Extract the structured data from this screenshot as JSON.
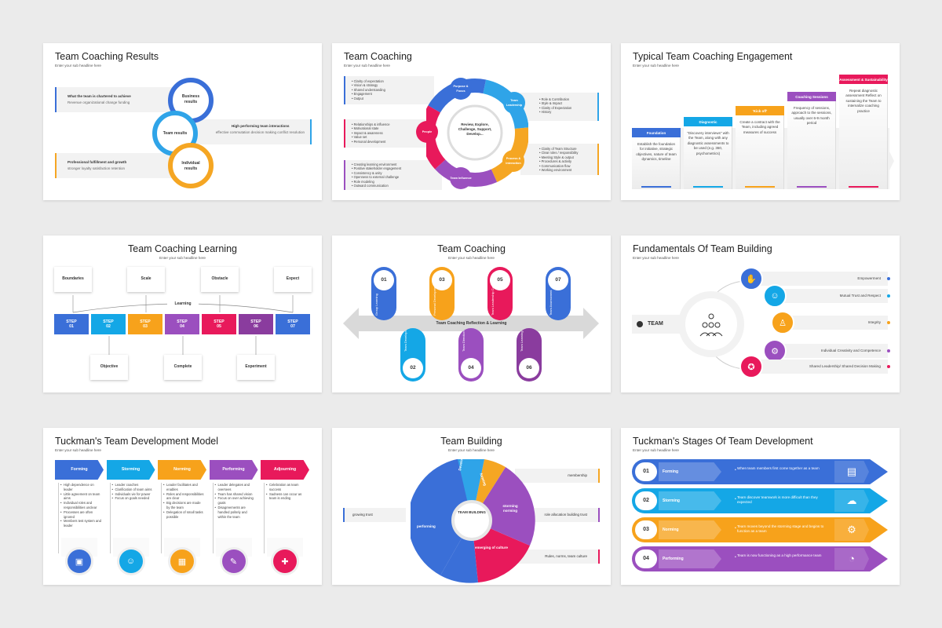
{
  "subhead": "Enter your sub headline here",
  "slide1": {
    "title": "Team Coaching Results",
    "left_top": {
      "head": "What the team is chartered to achieve",
      "sub": "Revenue organizational change funding"
    },
    "right_mid": {
      "head": "High performing team interactions",
      "sub": "effective commutation decision making conflict resolution"
    },
    "left_bot": {
      "head": "Professional fulfillment and growth",
      "sub": "stronger loyalty satisfaction retention"
    },
    "ring1": "Business results",
    "ring2": "Team results",
    "ring3": "Individual results"
  },
  "slide2": {
    "title": "Team Coaching",
    "center": "Review, Explore, Challenge, Support, Develop...",
    "nodes": [
      "Purpose & Focus",
      "Team Leadership",
      "Process & Interaction",
      "Team Influence",
      "People"
    ],
    "list_tl": [
      "Clarity of expectation",
      "Vision & strategy",
      "Shared understanding",
      "Engagement",
      "Output"
    ],
    "list_ml": [
      "Relationships & influence",
      "Motivational state",
      "Impact & awareness",
      "Value set",
      "Personal development"
    ],
    "list_bl": [
      "Creating learning environment",
      "Positive stakeholder engagement",
      "Consistency & unity",
      "Openness to external challenge",
      "Role modeling",
      "Outward communication"
    ],
    "list_tr": [
      "Role & Contribution",
      "Style & Impact",
      "Clarity of Expectation",
      "History"
    ],
    "list_br": [
      "Clarity of Team Structure",
      "Clear roles / responsibility",
      "Meeting Style & output",
      "Procedures & activity",
      "Communication flow",
      "Working environment"
    ]
  },
  "slide3": {
    "title": "Typical Team Coaching Engagement",
    "steps": [
      {
        "label": "Foundation",
        "text": "Establish the foundation for initiative, strategic objectives, nature of team dynamics, timeline"
      },
      {
        "label": "Diagnostic",
        "text": "\"Discovery interviews\" with the Team, along with any diagnostic assessments to be used (e.g. 360, psychometrics)"
      },
      {
        "label": "'Kick off'",
        "text": "Create a contract with the Team, including agreed measures of success"
      },
      {
        "label": "Coaching Sessions",
        "text": "Frequency of sessions, approach to the sessions, usually over 6-9 month period"
      },
      {
        "label": "Assessment & Sustainability",
        "text": "Repeat diagnostic assessment Reflect on sustaining the Team to internalize coaching practice"
      }
    ]
  },
  "slide4": {
    "title": "Team Coaching Learning",
    "top": [
      "Boundaries",
      "Scale",
      "Obstacle",
      "Expect"
    ],
    "bottom": [
      "Objective",
      "Complete",
      "Experiment"
    ],
    "learning": "Learning",
    "steps": [
      {
        "label": "STEP",
        "num": "01"
      },
      {
        "label": "STEP",
        "num": "02"
      },
      {
        "label": "STEP",
        "num": "03"
      },
      {
        "label": "STEP",
        "num": "04"
      },
      {
        "label": "STEP",
        "num": "05"
      },
      {
        "label": "STEP",
        "num": "06"
      },
      {
        "label": "STEP",
        "num": "07"
      }
    ]
  },
  "slide5": {
    "title": "Team Coaching",
    "arrow_label": "Team Coaching Reflection & Learning",
    "pills": [
      {
        "num": "01",
        "text": "Group Learning"
      },
      {
        "num": "02",
        "text": "Team Development"
      },
      {
        "num": "03",
        "text": "Personal Development"
      },
      {
        "num": "04",
        "text": "Team Direction"
      },
      {
        "num": "05",
        "text": "Team Leadership Coach"
      },
      {
        "num": "06",
        "text": "Team Learning Results"
      },
      {
        "num": "07",
        "text": "Team Assessment"
      }
    ]
  },
  "slide6": {
    "title": "Fundamentals Of Team Building",
    "team": "TEAM",
    "items": [
      "Empowerment",
      "Mutual Trust and Respect",
      "Integrity",
      "Individual Creativity and Competence",
      "Shared Leadership/ Shared Decision Making"
    ]
  },
  "slide7": {
    "title": "Tuckman's Team Development Model",
    "cols": [
      {
        "head": "Forming",
        "items": [
          "High dependence on leader",
          "Little agreement on team aims",
          "Individual roles and responsibilities unclear",
          "Processes are often ignored",
          "Members test system and leader"
        ]
      },
      {
        "head": "Storming",
        "items": [
          "Leader coaches",
          "Clarification of team aims",
          "Individuals vie for power",
          "Focus on goals needed"
        ]
      },
      {
        "head": "Norming",
        "items": [
          "Leader facilitates and enables",
          "Roles and responsibilities are clear",
          "Big decisions are made by the team",
          "Delegation of small tasks possible"
        ]
      },
      {
        "head": "Performing",
        "items": [
          "Leader delegates and oversees",
          "Team has shared vision",
          "Focus on over achieving goals",
          "Disagreements are handled politely and within the team"
        ]
      },
      {
        "head": "Adjourning",
        "items": [
          "Celebration as team success",
          "Sadness can occur as team is ending"
        ]
      }
    ]
  },
  "slide8": {
    "title": "Team Building",
    "center": "TEAM BUILDING",
    "segments": [
      "performing",
      "Developing",
      "forming",
      "storming norming",
      "emerging of culture"
    ],
    "callouts": [
      "membership",
      "role allocation building trust",
      "Rules, norms, team culture",
      "growing trust"
    ]
  },
  "slide9": {
    "title": "Tuckman's Stages Of Team Development",
    "rows": [
      {
        "num": "01",
        "label": "Forming",
        "text": "When team members first come together as a team"
      },
      {
        "num": "02",
        "label": "Storming",
        "text": "Team discover teamwork is more difficult than they expected"
      },
      {
        "num": "03",
        "label": "Norming",
        "text": "Team moves beyond the storming stage and begins to function as a team"
      },
      {
        "num": "04",
        "label": "Performing",
        "text": "Team is now functioning as a high performance team"
      }
    ]
  }
}
